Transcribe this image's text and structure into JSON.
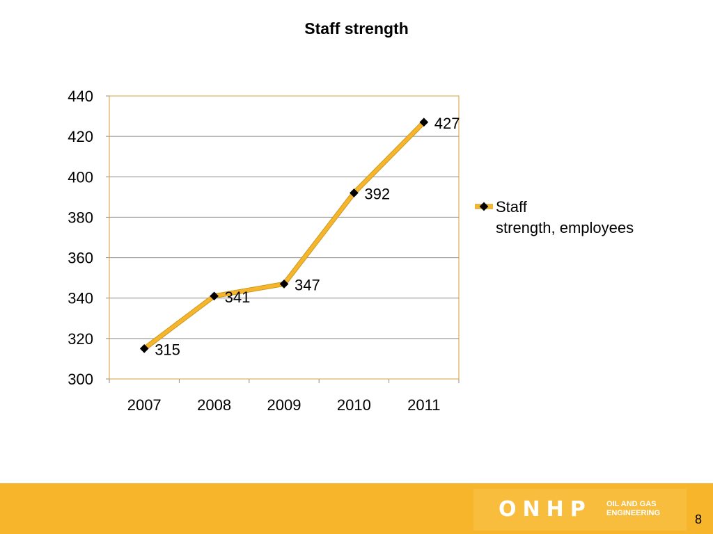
{
  "slide": {
    "title": "Staff strength",
    "page_number": "8"
  },
  "logo": {
    "mark": "ONHP",
    "subtitle_line1": "OIL AND GAS",
    "subtitle_line2": "ENGINEERING"
  },
  "colors": {
    "line": "#f7b52c",
    "line_edge": "#c99a22",
    "marker": "#000000",
    "gridline": "#8c8c8c",
    "plot_border": "#d9a23a",
    "footer": "#f7b52c"
  },
  "chart_data": {
    "type": "line",
    "title": "Staff strength",
    "categories": [
      "2007",
      "2008",
      "2009",
      "2010",
      "2011"
    ],
    "series": [
      {
        "name": "Staff strength, employees",
        "name_lines": [
          "Staff",
          "strength, employees"
        ],
        "values": [
          315,
          341,
          347,
          392,
          427
        ]
      }
    ],
    "ylim": [
      300,
      440
    ],
    "y_ticks": [
      300,
      320,
      340,
      360,
      380,
      400,
      420,
      440
    ],
    "grid": true,
    "legend": "right",
    "data_labels": true
  }
}
